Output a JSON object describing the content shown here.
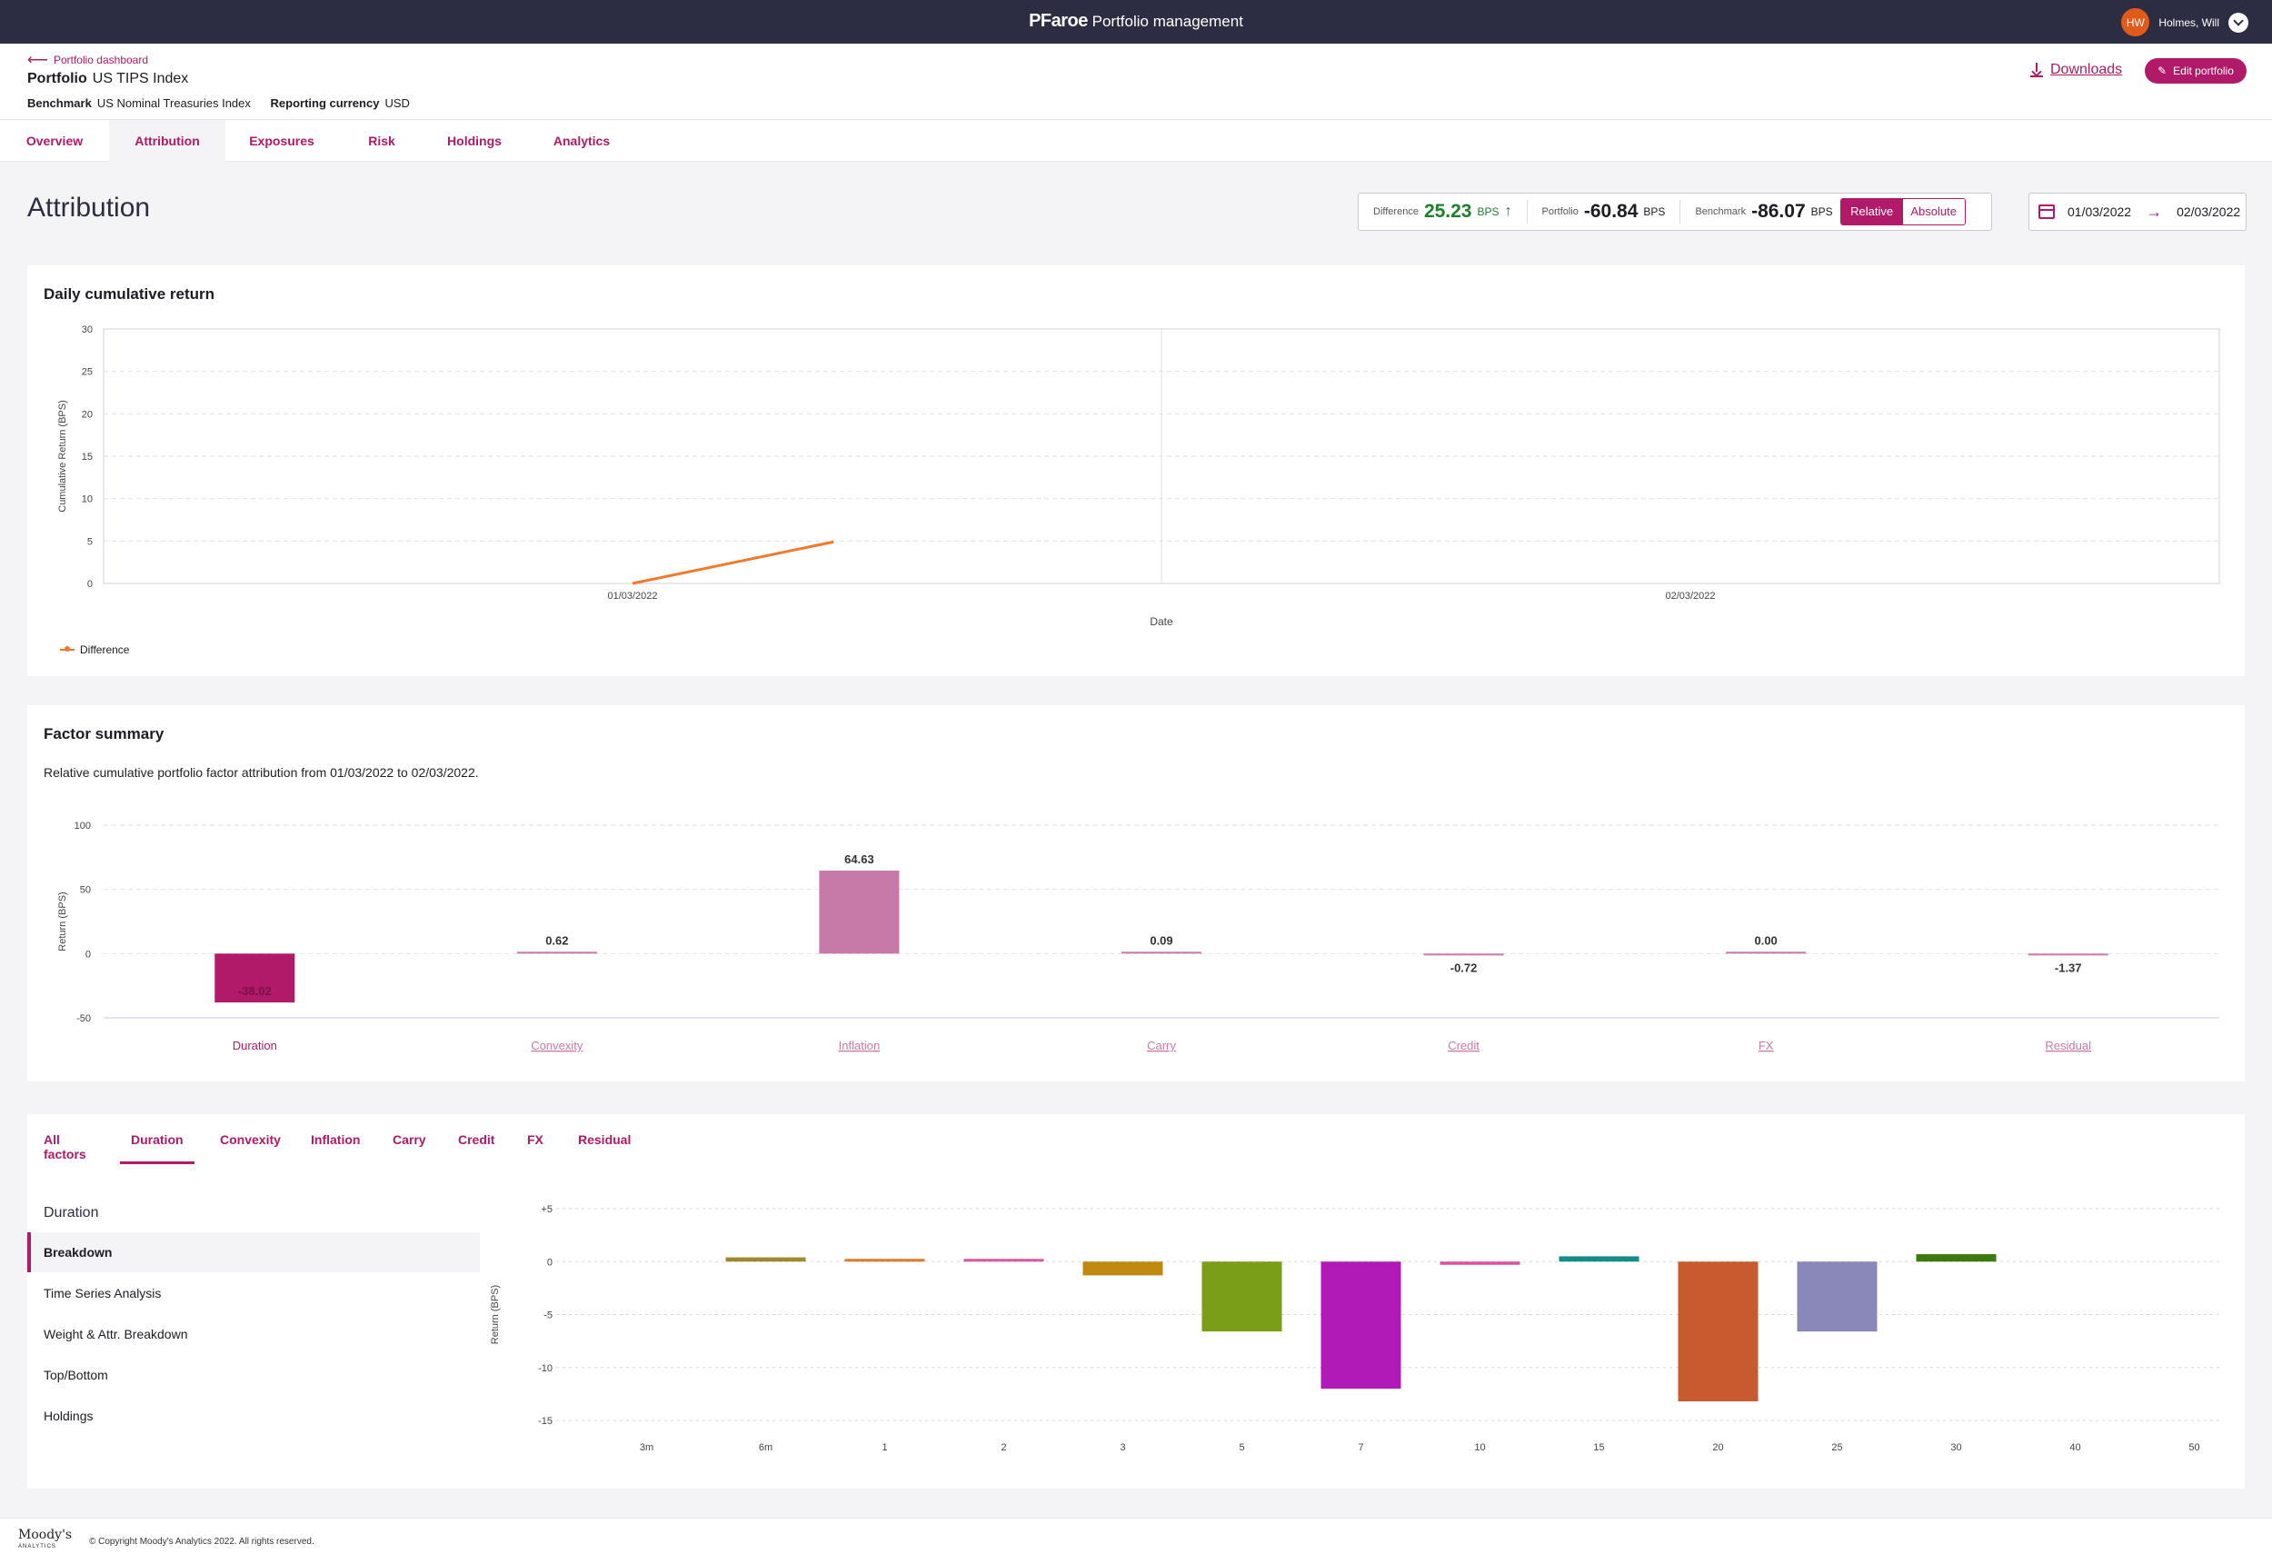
{
  "topbar": {
    "logo": "PFaroe",
    "product": "Portfolio management",
    "user_initials": "HW",
    "user_name": "Holmes, Will"
  },
  "header": {
    "back_label": "Portfolio dashboard",
    "portfolio_label": "Portfolio",
    "portfolio_name": "US TIPS Index",
    "benchmark_label": "Benchmark",
    "benchmark_name": "US Nominal Treasuries Index",
    "currency_label": "Reporting currency",
    "currency_value": "USD",
    "downloads_label": "Downloads",
    "edit_label": "Edit portfolio"
  },
  "tabs": [
    {
      "label": "Overview"
    },
    {
      "label": "Attribution",
      "active": true
    },
    {
      "label": "Exposures"
    },
    {
      "label": "Risk"
    },
    {
      "label": "Holdings"
    },
    {
      "label": "Analytics"
    }
  ],
  "page_title": "Attribution",
  "stats": {
    "difference_label": "Difference",
    "difference_value": "25.23",
    "portfolio_label": "Portfolio",
    "portfolio_value": "-60.84",
    "benchmark_label": "Benchmark",
    "benchmark_value": "-86.07",
    "unit": "BPS",
    "mode_relative": "Relative",
    "mode_absolute": "Absolute"
  },
  "daterange": {
    "from": "01/03/2022",
    "to": "02/03/2022"
  },
  "cumulative": {
    "title": "Daily cumulative return",
    "legend": "Difference"
  },
  "factor_summary": {
    "title": "Factor summary",
    "subtitle": "Relative cumulative portfolio factor attribution from 01/03/2022 to 02/03/2022."
  },
  "breakdown": {
    "subtabs": [
      "All factors",
      "Duration",
      "Convexity",
      "Inflation",
      "Carry",
      "Credit",
      "FX",
      "Residual"
    ],
    "active_subtab": "Duration",
    "side_title": "Duration",
    "side_items": [
      "Breakdown",
      "Time Series Analysis",
      "Weight & Attr. Breakdown",
      "Top/Bottom",
      "Holdings"
    ]
  },
  "footer": {
    "brand": "Moody's",
    "brand_sub": "ANALYTICS",
    "copyright": "© Copyright Moody's Analytics 2022. All rights reserved."
  },
  "chart_data": [
    {
      "type": "line",
      "title": "Daily cumulative return",
      "xlabel": "Date",
      "ylabel": "Cumulative Return (BPS)",
      "ylim": [
        0,
        30
      ],
      "yticks": [
        0,
        5,
        10,
        15,
        20,
        25,
        30
      ],
      "categories": [
        "01/03/2022",
        "02/03/2022"
      ],
      "series": [
        {
          "name": "Difference",
          "color": "#f07a2a",
          "points": [
            [
              0,
              0
            ],
            [
              0.19,
              4.9
            ]
          ]
        }
      ],
      "grid": true,
      "legend": "bottom-left"
    },
    {
      "type": "bar",
      "ylabel": "Return (BPS)",
      "ylim": [
        -50,
        100
      ],
      "yticks": [
        -50,
        0,
        50,
        100
      ],
      "categories": [
        "Duration",
        "Convexity",
        "Inflation",
        "Carry",
        "Credit",
        "FX",
        "Residual"
      ],
      "values": [
        -38.02,
        0.62,
        64.63,
        0.09,
        -0.72,
        0.0,
        -1.37
      ],
      "labels": [
        "-38.02",
        "0.62",
        "64.63",
        "0.09",
        "-0.72",
        "0.00",
        "-1.37"
      ],
      "colors": [
        "#b01a68",
        "#c77aa8",
        "#c77aa8",
        "#c77aa8",
        "#c77aa8",
        "#c77aa8",
        "#c77aa8"
      ],
      "grid": true
    },
    {
      "type": "bar",
      "ylabel": "Return (BPS)",
      "ylim": [
        -15,
        5
      ],
      "yticks": [
        5,
        0,
        -5,
        -10,
        -15
      ],
      "ytick_labels": [
        "+5",
        "0",
        "-5",
        "-10",
        "-15"
      ],
      "categories": [
        "3m",
        "6m",
        "1",
        "2",
        "3",
        "5",
        "7",
        "10",
        "15",
        "20",
        "25",
        "30",
        "40",
        "50"
      ],
      "values": [
        0,
        0.4,
        0.2,
        0.2,
        -1.3,
        -6.6,
        -12.0,
        -0.3,
        0.5,
        -13.2,
        -6.6,
        0.7,
        0,
        0
      ],
      "colors": [
        "#888",
        "#9c8a2e",
        "#e07a2a",
        "#d65aa0",
        "#c08a10",
        "#7a9e18",
        "#b21ab8",
        "#e0509a",
        "#1a8c86",
        "#c85a30",
        "#8a88b8",
        "#3c7a10",
        "#888",
        "#888"
      ],
      "grid": true
    }
  ]
}
